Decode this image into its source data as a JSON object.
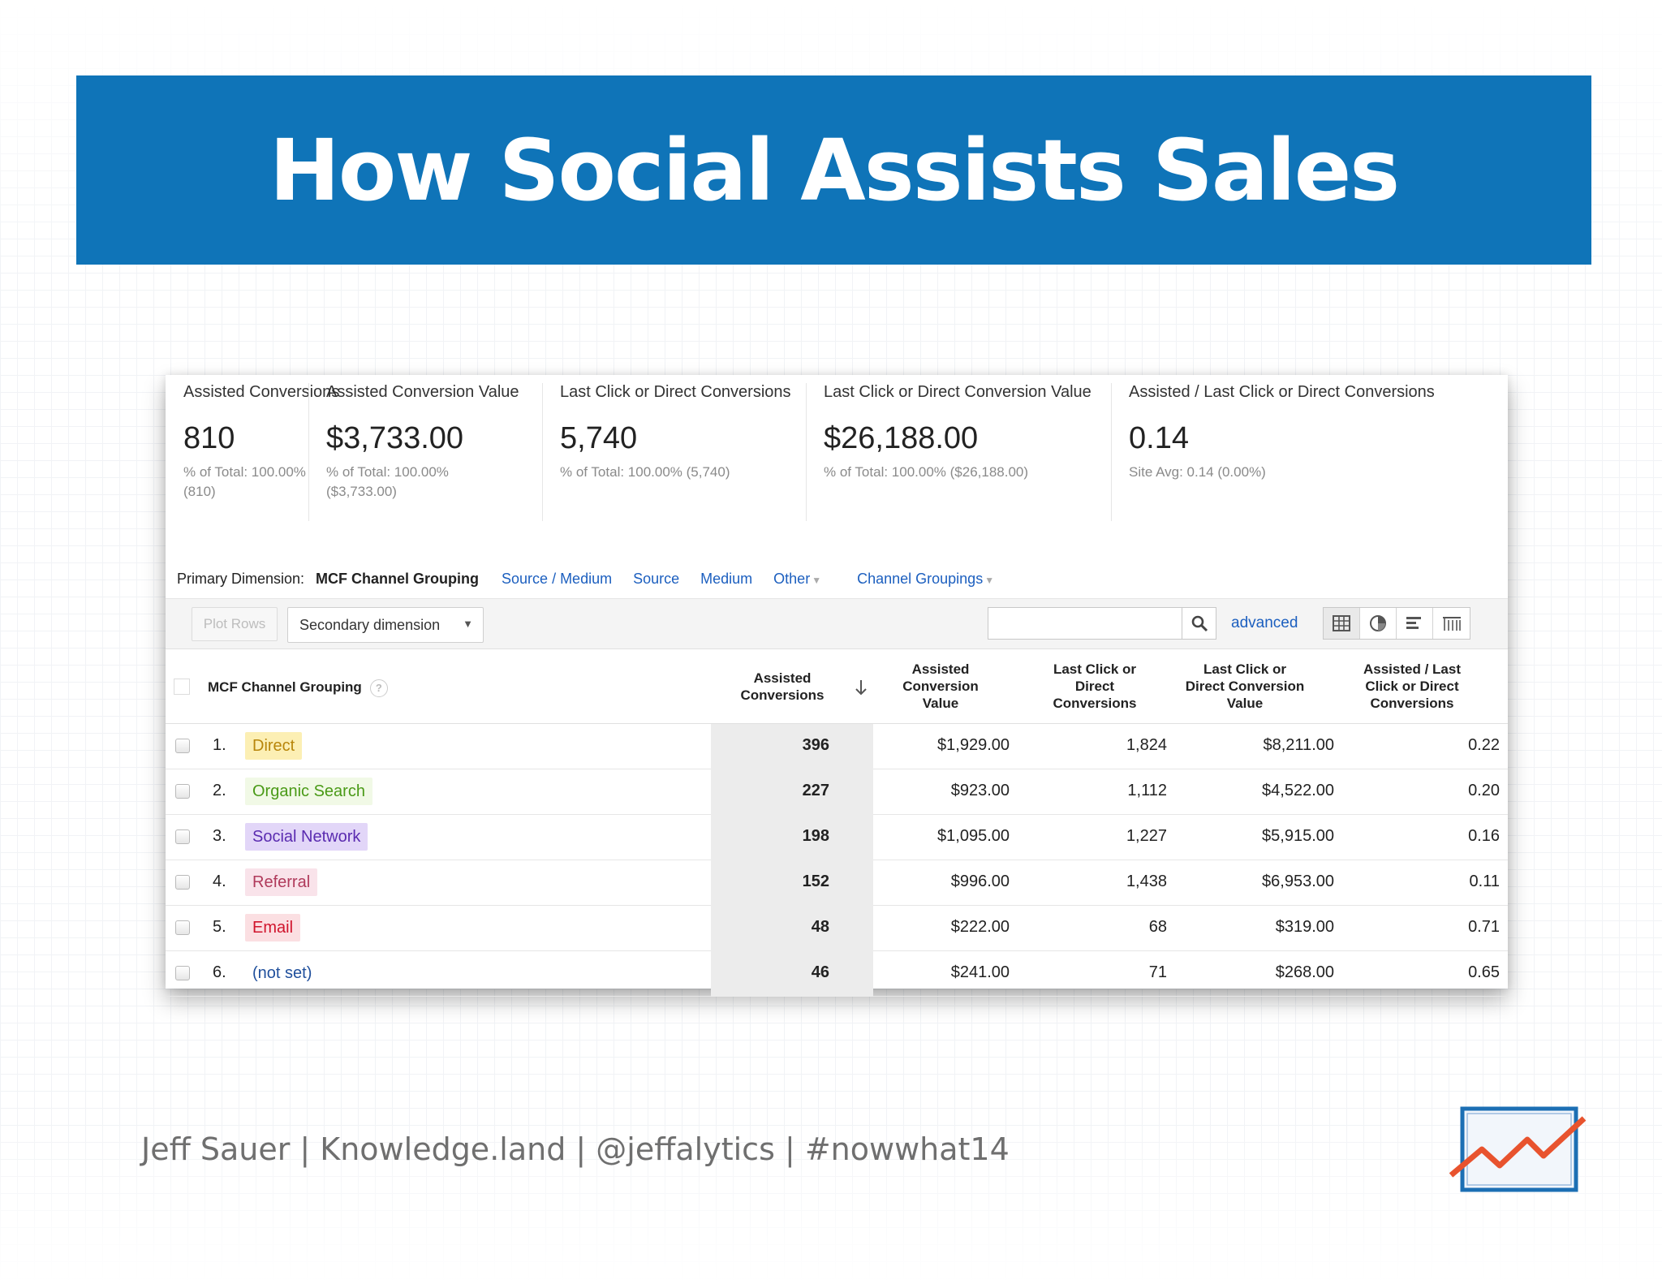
{
  "slide": {
    "title": "How Social Assists Sales",
    "footer": "Jeff Sauer | Knowledge.land | @jeffalytics | #nowwhat14"
  },
  "scorecard": [
    {
      "label": "Assisted Conversions",
      "value": "810",
      "sub": "% of Total: 100.00% (810)"
    },
    {
      "label": "Assisted Conversion Value",
      "value": "$3,733.00",
      "sub": "% of Total: 100.00% ($3,733.00)"
    },
    {
      "label": "Last Click or Direct Conversions",
      "value": "5,740",
      "sub": "% of Total: 100.00% (5,740)"
    },
    {
      "label": "Last Click or Direct Conversion Value",
      "value": "$26,188.00",
      "sub": "% of Total: 100.00% ($26,188.00)"
    },
    {
      "label": "Assisted / Last Click or Direct Conversions",
      "value": "0.14",
      "sub": "Site Avg: 0.14 (0.00%)"
    }
  ],
  "dimensions": {
    "label": "Primary Dimension:",
    "current": "MCF Channel Grouping",
    "links": [
      "Source / Medium",
      "Source",
      "Medium",
      "Other"
    ],
    "channel_groupings": "Channel Groupings"
  },
  "toolbar": {
    "plot_rows": "Plot Rows",
    "secondary_dimension": "Secondary dimension",
    "search_value": "",
    "advanced": "advanced"
  },
  "table": {
    "columns": {
      "channel": "MCF Channel Grouping",
      "help": "?",
      "assisted": [
        "Assisted",
        "Conversions"
      ],
      "assisted_value": [
        "Assisted",
        "Conversion",
        "Value"
      ],
      "last_click": [
        "Last Click or",
        "Direct",
        "Conversions"
      ],
      "last_click_value": [
        "Last Click or",
        "Direct Conversion",
        "Value"
      ],
      "ratio": [
        "Assisted / Last",
        "Click or Direct",
        "Conversions"
      ]
    },
    "rows": [
      {
        "num": "1.",
        "channel": "Direct",
        "assisted": "396",
        "assisted_value": "$1,929.00",
        "last_click": "1,824",
        "last_click_value": "$8,211.00",
        "ratio": "0.22",
        "color": "#b8860b",
        "bg": "#fcefb4"
      },
      {
        "num": "2.",
        "channel": "Organic Search",
        "assisted": "227",
        "assisted_value": "$923.00",
        "last_click": "1,112",
        "last_click_value": "$4,522.00",
        "ratio": "0.20",
        "color": "#4a9a17",
        "bg": "#f1f9e6"
      },
      {
        "num": "3.",
        "channel": "Social Network",
        "assisted": "198",
        "assisted_value": "$1,095.00",
        "last_click": "1,227",
        "last_click_value": "$5,915.00",
        "ratio": "0.16",
        "color": "#5a2bb0",
        "bg": "#e2d6f8"
      },
      {
        "num": "4.",
        "channel": "Referral",
        "assisted": "152",
        "assisted_value": "$996.00",
        "last_click": "1,438",
        "last_click_value": "$6,953.00",
        "ratio": "0.11",
        "color": "#b03a5b",
        "bg": "#f9e3ea"
      },
      {
        "num": "5.",
        "channel": "Email",
        "assisted": "48",
        "assisted_value": "$222.00",
        "last_click": "68",
        "last_click_value": "$319.00",
        "ratio": "0.71",
        "color": "#d0142c",
        "bg": "#fbdfe2"
      },
      {
        "num": "6.",
        "channel": "(not set)",
        "assisted": "46",
        "assisted_value": "$241.00",
        "last_click": "71",
        "last_click_value": "$268.00",
        "ratio": "0.65",
        "color": "#1f4f9c",
        "bg": "transparent"
      }
    ]
  },
  "colors": {
    "banner": "#0f74b8",
    "link": "#1c5fbf",
    "logo_frame": "#1c6fb4",
    "logo_line": "#e8532e"
  },
  "icons": {
    "search": "search-icon",
    "sort": "sort-down-arrow-icon",
    "views": [
      "table-view-icon",
      "pie-view-icon",
      "bar-view-icon",
      "pivot-view-icon"
    ],
    "logo": "chart-logo-icon"
  }
}
